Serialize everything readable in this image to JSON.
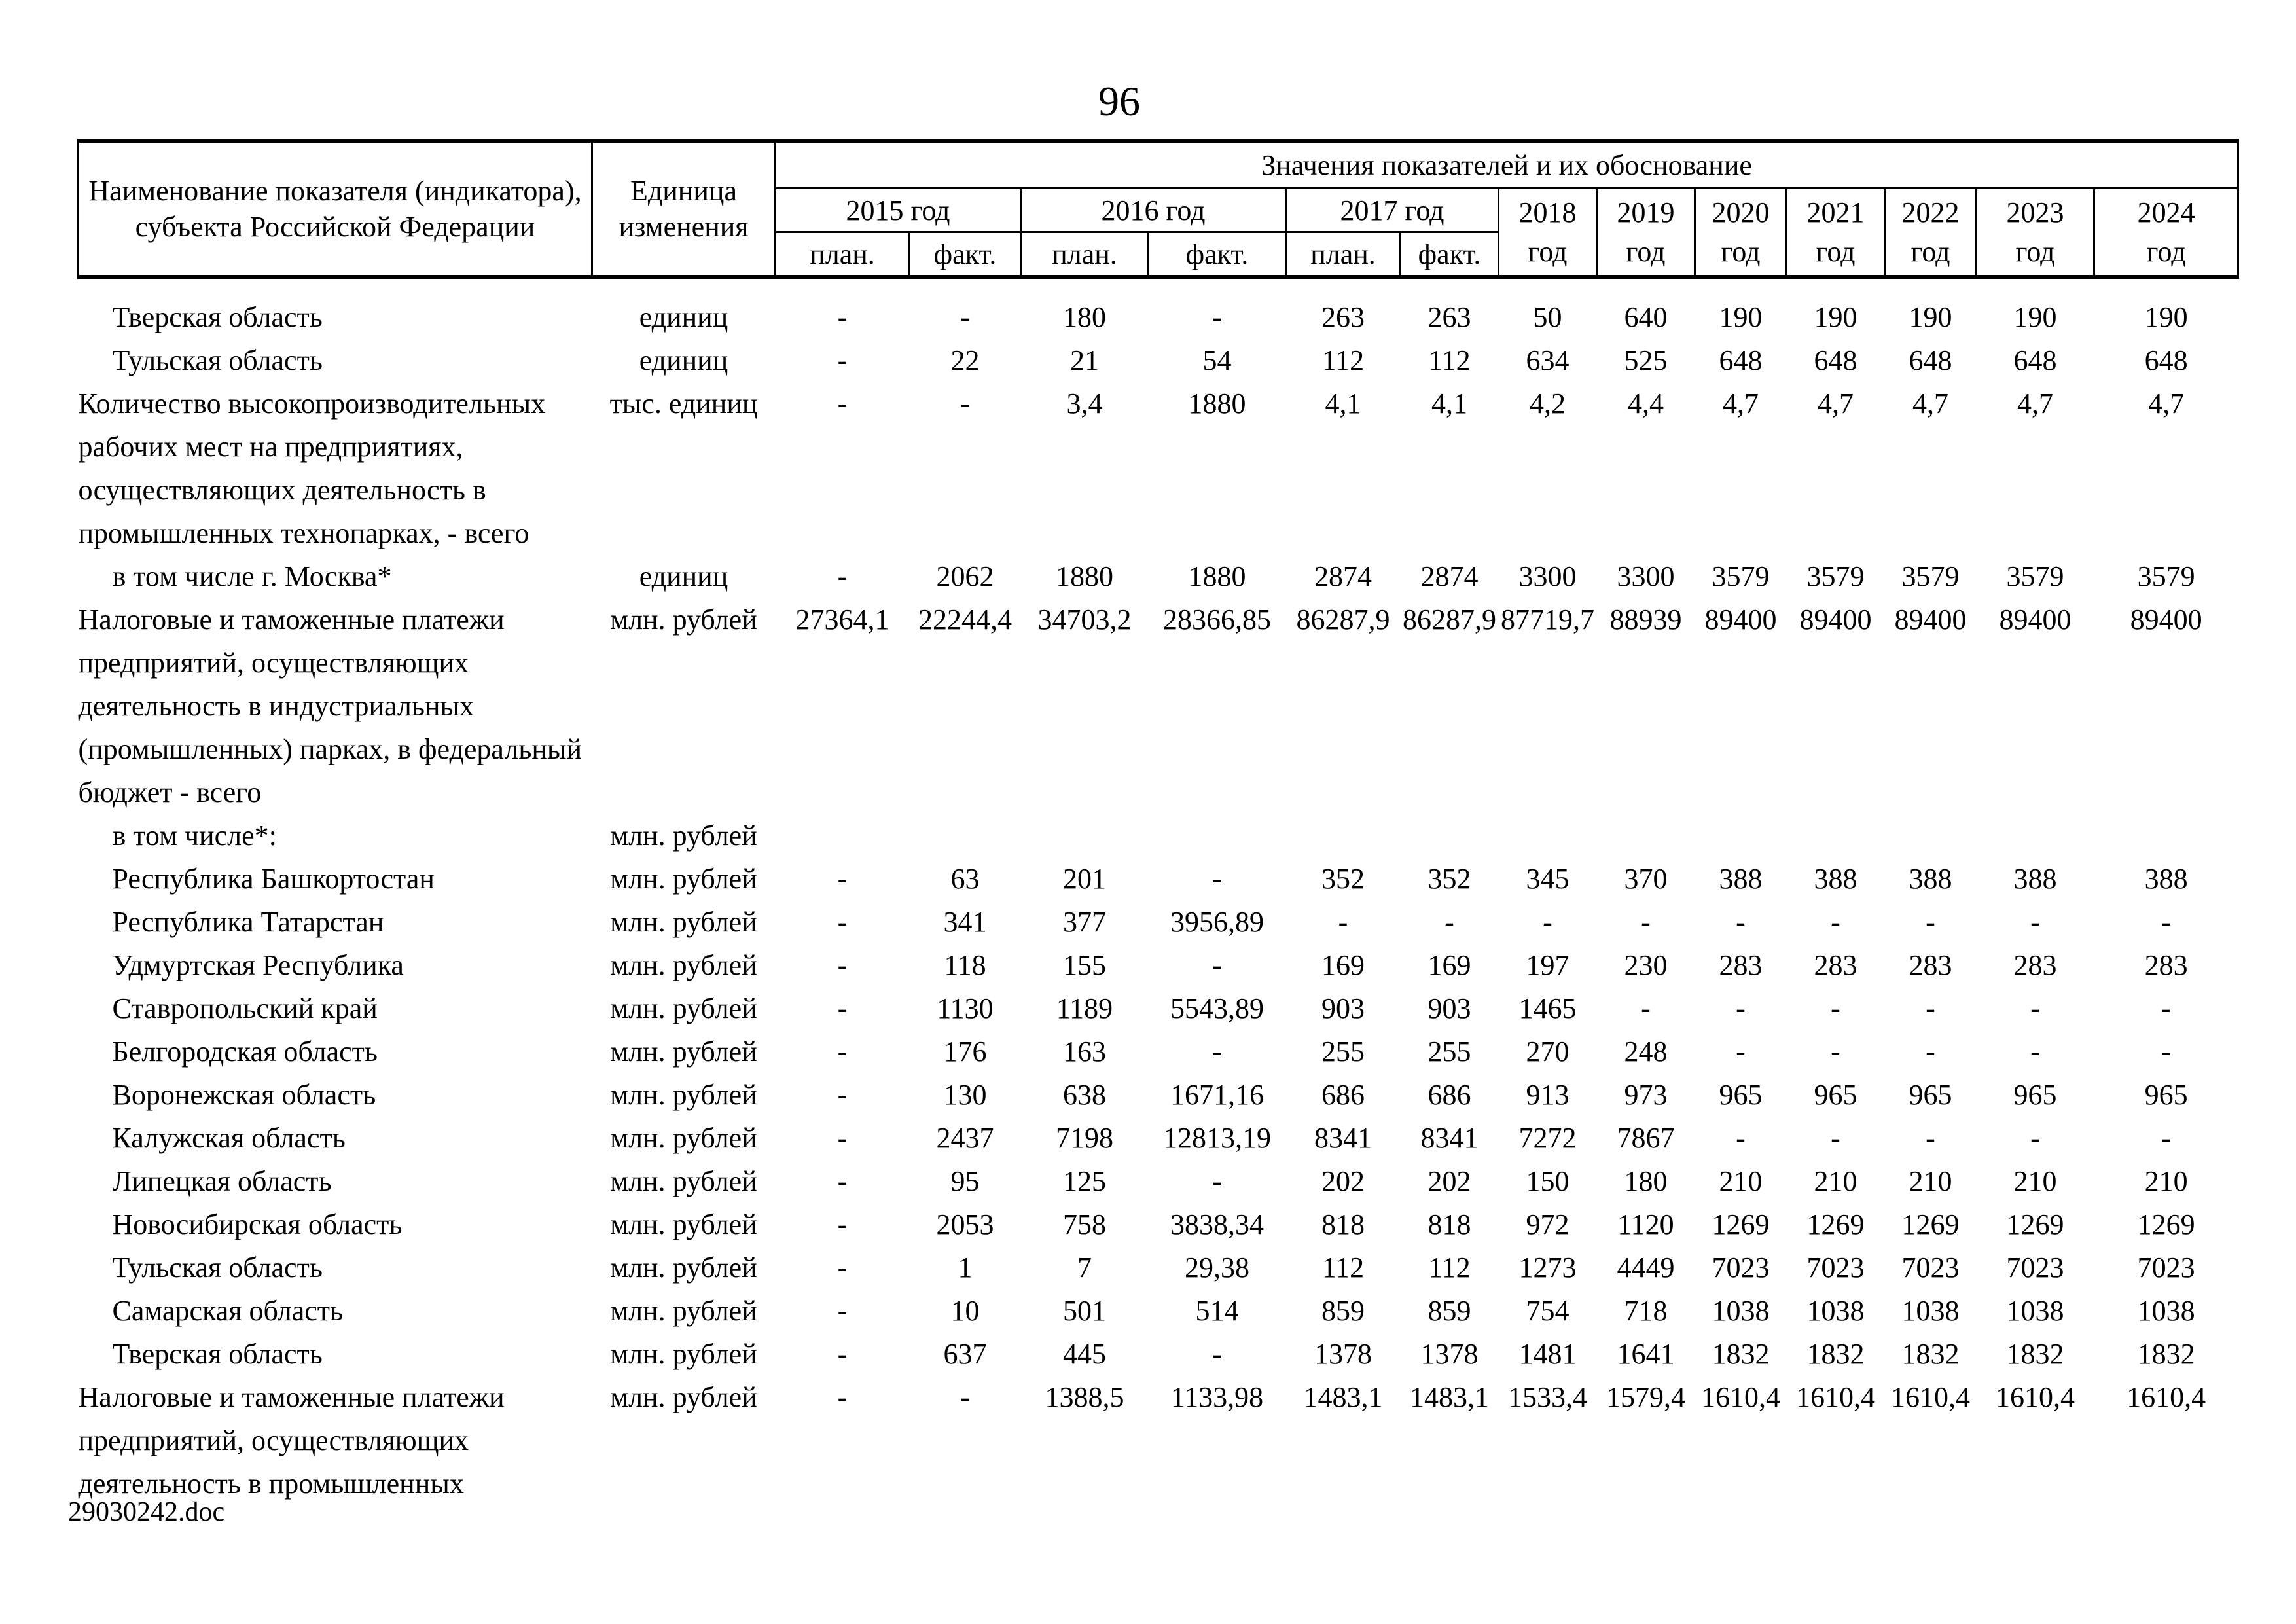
{
  "page": {
    "number": "96",
    "footer": "29030242.doc"
  },
  "table": {
    "header": {
      "indicator_label": "Наименование показателя (индикатора), субъекта Российской Федерации",
      "unit_label": "Единица изменения",
      "values_group_label": "Значения показателей и их обоснование",
      "plan_label": "план.",
      "fact_label": "факт.",
      "year_groups": [
        {
          "label": "2015 год"
        },
        {
          "label": "2016 год"
        },
        {
          "label": "2017 год"
        }
      ],
      "single_years": [
        {
          "year": "2018",
          "suffix": "год"
        },
        {
          "year": "2019",
          "suffix": "год"
        },
        {
          "year": "2020",
          "suffix": "год"
        },
        {
          "year": "2021",
          "suffix": "год"
        },
        {
          "year": "2022",
          "suffix": "год"
        },
        {
          "year": "2023",
          "suffix": "год"
        },
        {
          "year": "2024",
          "suffix": "год"
        }
      ]
    },
    "rows": [
      {
        "name": "Тверская область",
        "indent": 1,
        "unit": "единиц",
        "values": [
          "-",
          "-",
          "180",
          "-",
          "263",
          "263",
          "50",
          "640",
          "190",
          "190",
          "190",
          "190",
          "190"
        ]
      },
      {
        "name": "Тульская область",
        "indent": 1,
        "unit": "единиц",
        "values": [
          "-",
          "22",
          "21",
          "54",
          "112",
          "112",
          "634",
          "525",
          "648",
          "648",
          "648",
          "648",
          "648"
        ]
      },
      {
        "name": "Количество высокопроизводительных рабочих мест на предприятиях, осуществляющих деятельность в промышленных технопарках, - всего",
        "indent": 0,
        "unit": "тыс. единиц",
        "values": [
          "-",
          "-",
          "3,4",
          "1880",
          "4,1",
          "4,1",
          "4,2",
          "4,4",
          "4,7",
          "4,7",
          "4,7",
          "4,7",
          "4,7"
        ]
      },
      {
        "name": "в том числе г. Москва*",
        "indent": 1,
        "unit": "единиц",
        "values": [
          "-",
          "2062",
          "1880",
          "1880",
          "2874",
          "2874",
          "3300",
          "3300",
          "3579",
          "3579",
          "3579",
          "3579",
          "3579"
        ]
      },
      {
        "name": "Налоговые и таможенные платежи предприятий, осуществляющих деятельность в индустриальных (промышленных) парках, в федеральный бюджет - всего",
        "indent": 0,
        "unit": "млн. рублей",
        "values": [
          "27364,1",
          "22244,4",
          "34703,2",
          "28366,85",
          "86287,9",
          "86287,9",
          "87719,7",
          "88939",
          "89400",
          "89400",
          "89400",
          "89400",
          "89400"
        ]
      },
      {
        "name": "в том числе*:",
        "indent": 1,
        "unit": "млн. рублей",
        "values": [
          "",
          "",
          "",
          "",
          "",
          "",
          "",
          "",
          "",
          "",
          "",
          "",
          ""
        ]
      },
      {
        "name": "Республика Башкортостан",
        "indent": 1,
        "unit": "млн. рублей",
        "values": [
          "-",
          "63",
          "201",
          "-",
          "352",
          "352",
          "345",
          "370",
          "388",
          "388",
          "388",
          "388",
          "388"
        ]
      },
      {
        "name": "Республика Татарстан",
        "indent": 1,
        "unit": "млн. рублей",
        "values": [
          "-",
          "341",
          "377",
          "3956,89",
          "-",
          "-",
          "-",
          "-",
          "-",
          "-",
          "-",
          "-",
          "-"
        ]
      },
      {
        "name": "Удмуртская Республика",
        "indent": 1,
        "unit": "млн. рублей",
        "values": [
          "-",
          "118",
          "155",
          "-",
          "169",
          "169",
          "197",
          "230",
          "283",
          "283",
          "283",
          "283",
          "283"
        ]
      },
      {
        "name": "Ставропольский край",
        "indent": 1,
        "unit": "млн. рублей",
        "values": [
          "-",
          "1130",
          "1189",
          "5543,89",
          "903",
          "903",
          "1465",
          "-",
          "-",
          "-",
          "-",
          "-",
          "-"
        ]
      },
      {
        "name": "Белгородская область",
        "indent": 1,
        "unit": "млн. рублей",
        "values": [
          "-",
          "176",
          "163",
          "-",
          "255",
          "255",
          "270",
          "248",
          "-",
          "-",
          "-",
          "-",
          "-"
        ]
      },
      {
        "name": "Воронежская область",
        "indent": 1,
        "unit": "млн. рублей",
        "values": [
          "-",
          "130",
          "638",
          "1671,16",
          "686",
          "686",
          "913",
          "973",
          "965",
          "965",
          "965",
          "965",
          "965"
        ]
      },
      {
        "name": "Калужская область",
        "indent": 1,
        "unit": "млн. рублей",
        "values": [
          "-",
          "2437",
          "7198",
          "12813,19",
          "8341",
          "8341",
          "7272",
          "7867",
          "-",
          "-",
          "-",
          "-",
          "-"
        ]
      },
      {
        "name": "Липецкая область",
        "indent": 1,
        "unit": "млн. рублей",
        "values": [
          "-",
          "95",
          "125",
          "-",
          "202",
          "202",
          "150",
          "180",
          "210",
          "210",
          "210",
          "210",
          "210"
        ]
      },
      {
        "name": "Новосибирская область",
        "indent": 1,
        "unit": "млн. рублей",
        "values": [
          "-",
          "2053",
          "758",
          "3838,34",
          "818",
          "818",
          "972",
          "1120",
          "1269",
          "1269",
          "1269",
          "1269",
          "1269"
        ]
      },
      {
        "name": "Тульская область",
        "indent": 1,
        "unit": "млн. рублей",
        "values": [
          "-",
          "1",
          "7",
          "29,38",
          "112",
          "112",
          "1273",
          "4449",
          "7023",
          "7023",
          "7023",
          "7023",
          "7023"
        ]
      },
      {
        "name": "Самарская область",
        "indent": 1,
        "unit": "млн. рублей",
        "values": [
          "-",
          "10",
          "501",
          "514",
          "859",
          "859",
          "754",
          "718",
          "1038",
          "1038",
          "1038",
          "1038",
          "1038"
        ]
      },
      {
        "name": "Тверская область",
        "indent": 1,
        "unit": "млн. рублей",
        "values": [
          "-",
          "637",
          "445",
          "-",
          "1378",
          "1378",
          "1481",
          "1641",
          "1832",
          "1832",
          "1832",
          "1832",
          "1832"
        ]
      },
      {
        "name": "Налоговые и таможенные платежи предприятий, осуществляющих деятельность в промышленных",
        "indent": 0,
        "unit": "млн. рублей",
        "values": [
          "-",
          "-",
          "1388,5",
          "1133,98",
          "1483,1",
          "1483,1",
          "1533,4",
          "1579,4",
          "1610,4",
          "1610,4",
          "1610,4",
          "1610,4",
          "1610,4"
        ]
      }
    ]
  }
}
